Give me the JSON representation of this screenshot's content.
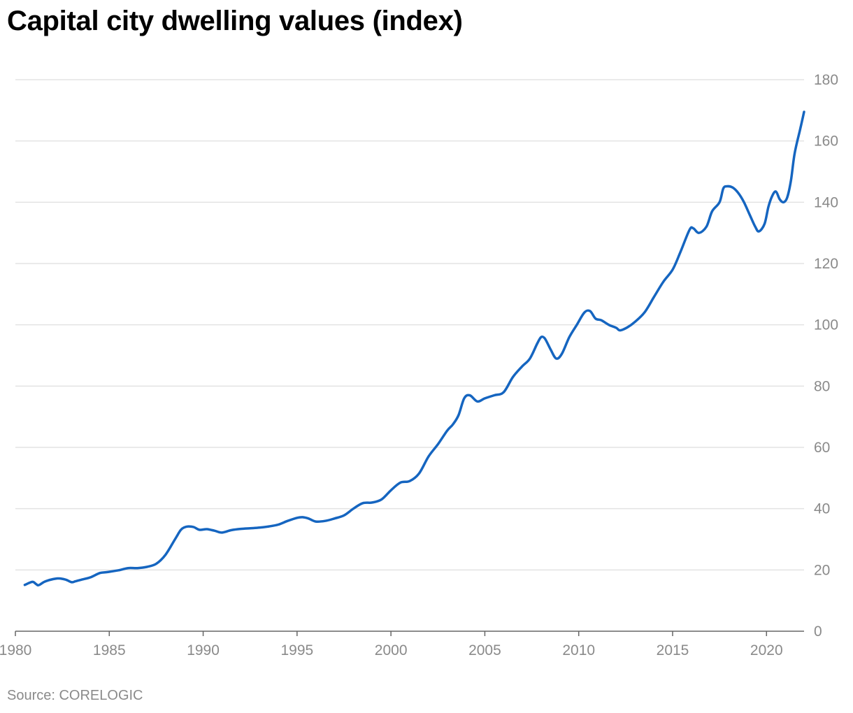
{
  "title": "Capital city dwelling values (index)",
  "source": "Source: CORELOGIC",
  "colors": {
    "line": "#1565c0",
    "grid": "#e3e3e3",
    "axis": "#666666",
    "tick_text": "#8a8a8a"
  },
  "chart_data": {
    "type": "line",
    "title": "Capital city dwelling values (index)",
    "xlabel": "",
    "ylabel": "",
    "xlim": [
      1980,
      2022
    ],
    "ylim": [
      0,
      180
    ],
    "x_ticks": [
      1980,
      1985,
      1990,
      1995,
      2000,
      2005,
      2010,
      2015,
      2020
    ],
    "y_ticks": [
      0,
      20,
      40,
      60,
      80,
      100,
      120,
      140,
      160,
      180
    ],
    "y_axis_position": "right",
    "grid": "horizontal",
    "series": [
      {
        "x": [
          1980.5,
          1980.9,
          1981.1,
          1981.2,
          1981.3,
          1981.5,
          1981.7,
          1982.0,
          1982.2,
          1982.4,
          1982.7,
          1983.0,
          1983.2,
          1983.5,
          1984.0,
          1984.5,
          1984.9,
          1985.5,
          1986.0,
          1986.5,
          1987.0,
          1987.5,
          1988.0,
          1988.5,
          1988.8,
          1989.0,
          1989.2,
          1989.5,
          1989.8,
          1990.2,
          1990.6,
          1991.0,
          1991.5,
          1992.0,
          1992.5,
          1993.0,
          1993.5,
          1994.0,
          1994.5,
          1995.0,
          1995.3,
          1995.6,
          1996.0,
          1996.5,
          1997.0,
          1997.5,
          1998.0,
          1998.5,
          1999.0,
          1999.5,
          2000.0,
          2000.5,
          2001.0,
          2001.5,
          2002.0,
          2002.5,
          2003.0,
          2003.3,
          2003.6,
          2003.9,
          2004.2,
          2004.6,
          2005.0,
          2005.5,
          2006.0,
          2006.5,
          2007.0,
          2007.4,
          2007.8,
          2008.0,
          2008.2,
          2008.5,
          2008.8,
          2009.1,
          2009.5,
          2009.9,
          2010.3,
          2010.6,
          2010.9,
          2011.2,
          2011.6,
          2012.0,
          2012.2,
          2012.6,
          2013.0,
          2013.5,
          2014.0,
          2014.5,
          2015.0,
          2015.4,
          2015.9,
          2016.1,
          2016.4,
          2016.8,
          2017.1,
          2017.5,
          2017.7,
          2017.9,
          2018.2,
          2018.5,
          2018.8,
          2019.1,
          2019.4,
          2019.6,
          2019.9,
          2020.1,
          2020.3,
          2020.5,
          2020.7,
          2020.9,
          2021.1,
          2021.3,
          2021.5,
          2021.8,
          2022.0
        ],
        "values": [
          15.1,
          16.1,
          15.4,
          15.0,
          15.2,
          16.0,
          16.5,
          17.0,
          17.2,
          17.2,
          16.8,
          16.0,
          16.3,
          16.8,
          17.6,
          19.0,
          19.3,
          19.9,
          20.6,
          20.6,
          21.0,
          22.0,
          25.0,
          30.0,
          33.0,
          33.9,
          34.2,
          34.0,
          33.1,
          33.3,
          32.8,
          32.2,
          33.0,
          33.4,
          33.6,
          33.8,
          34.2,
          34.8,
          36.0,
          37.0,
          37.2,
          36.8,
          35.8,
          36.0,
          36.8,
          37.8,
          40.0,
          41.8,
          42.0,
          43.0,
          46.0,
          48.5,
          49.0,
          51.5,
          57.0,
          61.0,
          65.5,
          67.5,
          70.5,
          76.0,
          77.0,
          75.0,
          76.0,
          77.0,
          78.0,
          83.0,
          86.5,
          89.0,
          94.0,
          96.0,
          95.5,
          92.0,
          89.0,
          90.5,
          96.0,
          100.0,
          104.0,
          104.5,
          102.0,
          101.5,
          100.0,
          99.0,
          98.2,
          99.2,
          101.0,
          104.0,
          109.0,
          114.0,
          118.0,
          123.5,
          131.0,
          131.5,
          130.0,
          132.0,
          137.0,
          140.0,
          144.5,
          145.2,
          144.8,
          143.0,
          140.0,
          136.0,
          132.0,
          130.5,
          133.0,
          138.5,
          142.0,
          143.5,
          141.0,
          140.0,
          141.5,
          147.0,
          156.0,
          164.0,
          169.5
        ]
      }
    ]
  }
}
